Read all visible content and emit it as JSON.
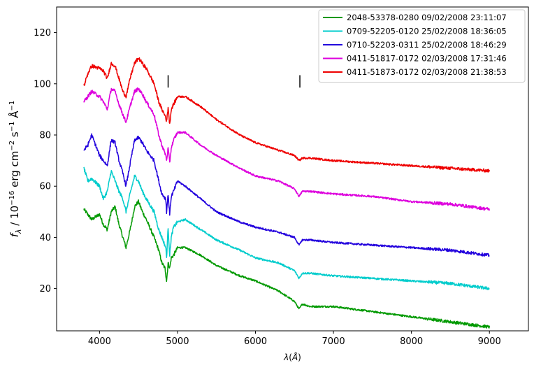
{
  "chart_data": {
    "type": "line",
    "xlabel": "λ(Å)",
    "ylabel": "f_λ / 10^-16 erg cm^-2 s^-1 Å^-1",
    "xlim": [
      3450,
      9500
    ],
    "ylim": [
      3.5,
      130
    ],
    "xticks": [
      4000,
      5000,
      6000,
      7000,
      8000,
      9000
    ],
    "yticks": [
      20,
      40,
      60,
      80,
      100,
      120
    ],
    "grid": false,
    "legend_position": "top-right",
    "markers": [
      {
        "x": 4880,
        "y_center": 101,
        "label": "|"
      },
      {
        "x": 6570,
        "y_center": 101,
        "label": "|"
      }
    ],
    "series": [
      {
        "name": "2048-53378-0280 09/02/2008 23:11:07",
        "color": "#009900",
        "x": [
          3800,
          3900,
          4000,
          4050,
          4100,
          4150,
          4200,
          4250,
          4300,
          4340,
          4400,
          4450,
          4500,
          4550,
          4600,
          4700,
          4760,
          4800,
          4840,
          4860,
          4880,
          4900,
          4920,
          4950,
          5000,
          5100,
          5300,
          5500,
          5800,
          6000,
          6300,
          6500,
          6560,
          6600,
          6700,
          7000,
          7500,
          8000,
          8500,
          9000
        ],
        "y": [
          51,
          47,
          49,
          45,
          43,
          50,
          52,
          45,
          40,
          36,
          44,
          52,
          54,
          50,
          47,
          40,
          35,
          30,
          28,
          23,
          30,
          28,
          32,
          33,
          36,
          36,
          33,
          29,
          25,
          23,
          19,
          15,
          12,
          14,
          13,
          13,
          11,
          9,
          7,
          5
        ]
      },
      {
        "name": "0709-52205-0120 25/02/2008 18:36:05",
        "color": "#00cccc",
        "x": [
          3800,
          3850,
          3900,
          4000,
          4050,
          4100,
          4150,
          4200,
          4250,
          4300,
          4340,
          4400,
          4450,
          4500,
          4550,
          4600,
          4700,
          4760,
          4800,
          4850,
          4860,
          4880,
          4900,
          4920,
          4950,
          5000,
          5100,
          5300,
          5500,
          5800,
          6000,
          6300,
          6500,
          6560,
          6600,
          6700,
          7000,
          7500,
          8000,
          8500,
          9000
        ],
        "y": [
          67,
          62,
          63,
          60,
          55,
          58,
          66,
          62,
          58,
          55,
          50,
          58,
          64,
          62,
          58,
          55,
          50,
          43,
          40,
          36,
          32,
          44,
          33,
          40,
          44,
          46,
          47,
          43,
          39,
          35,
          32,
          30,
          27,
          24,
          26,
          26,
          25,
          24,
          23,
          22,
          20
        ]
      },
      {
        "name": "0710-52203-0311 25/02/2008 18:46:29",
        "color": "#2200dd",
        "x": [
          3800,
          3850,
          3900,
          4000,
          4050,
          4100,
          4150,
          4200,
          4250,
          4300,
          4340,
          4400,
          4450,
          4500,
          4550,
          4600,
          4700,
          4760,
          4800,
          4850,
          4860,
          4880,
          4900,
          4920,
          4950,
          5000,
          5100,
          5300,
          5500,
          5800,
          6000,
          6300,
          6500,
          6560,
          6600,
          6700,
          7000,
          7500,
          8000,
          8500,
          9000
        ],
        "y": [
          74,
          76,
          80,
          72,
          70,
          68,
          78,
          77,
          70,
          65,
          60,
          70,
          78,
          79,
          77,
          74,
          70,
          62,
          57,
          55,
          50,
          57,
          49,
          56,
          58,
          62,
          60,
          55,
          50,
          46,
          44,
          42,
          40,
          37,
          39,
          39,
          38,
          37,
          36,
          35,
          33
        ]
      },
      {
        "name": "0411-51817-0172 02/03/2008 17:31:46",
        "color": "#dd00dd",
        "x": [
          3800,
          3850,
          3900,
          4000,
          4050,
          4100,
          4150,
          4200,
          4250,
          4300,
          4340,
          4400,
          4450,
          4500,
          4550,
          4600,
          4700,
          4760,
          4800,
          4850,
          4860,
          4880,
          4900,
          4920,
          4950,
          5000,
          5100,
          5300,
          5500,
          5800,
          6000,
          6300,
          6500,
          6560,
          6600,
          6700,
          7000,
          7500,
          8000,
          8500,
          9000
        ],
        "y": [
          93,
          95,
          97,
          95,
          93,
          90,
          98,
          97,
          92,
          88,
          85,
          92,
          97,
          98,
          96,
          93,
          88,
          80,
          76,
          72,
          70,
          75,
          69,
          75,
          78,
          81,
          81,
          76,
          72,
          67,
          64,
          62,
          59,
          56,
          58,
          58,
          57,
          56,
          54,
          53,
          51
        ]
      },
      {
        "name": "0411-51873-0172 02/03/2008 21:38:53",
        "color": "#ee0000",
        "x": [
          3800,
          3850,
          3900,
          4000,
          4050,
          4100,
          4150,
          4200,
          4250,
          4300,
          4340,
          4400,
          4450,
          4500,
          4550,
          4600,
          4700,
          4760,
          4800,
          4850,
          4860,
          4880,
          4900,
          4920,
          4950,
          5000,
          5100,
          5300,
          5500,
          5800,
          6000,
          6300,
          6500,
          6560,
          6600,
          6700,
          7000,
          7500,
          8000,
          8500,
          9000
        ],
        "y": [
          99,
          104,
          107,
          106,
          105,
          102,
          108,
          107,
          102,
          97,
          95,
          103,
          108,
          110,
          108,
          106,
          100,
          93,
          90,
          87,
          85,
          91,
          84,
          90,
          92,
          95,
          95,
          91,
          86,
          80,
          77,
          74,
          72,
          70,
          71,
          71,
          70,
          69,
          68,
          67,
          66
        ]
      }
    ]
  }
}
